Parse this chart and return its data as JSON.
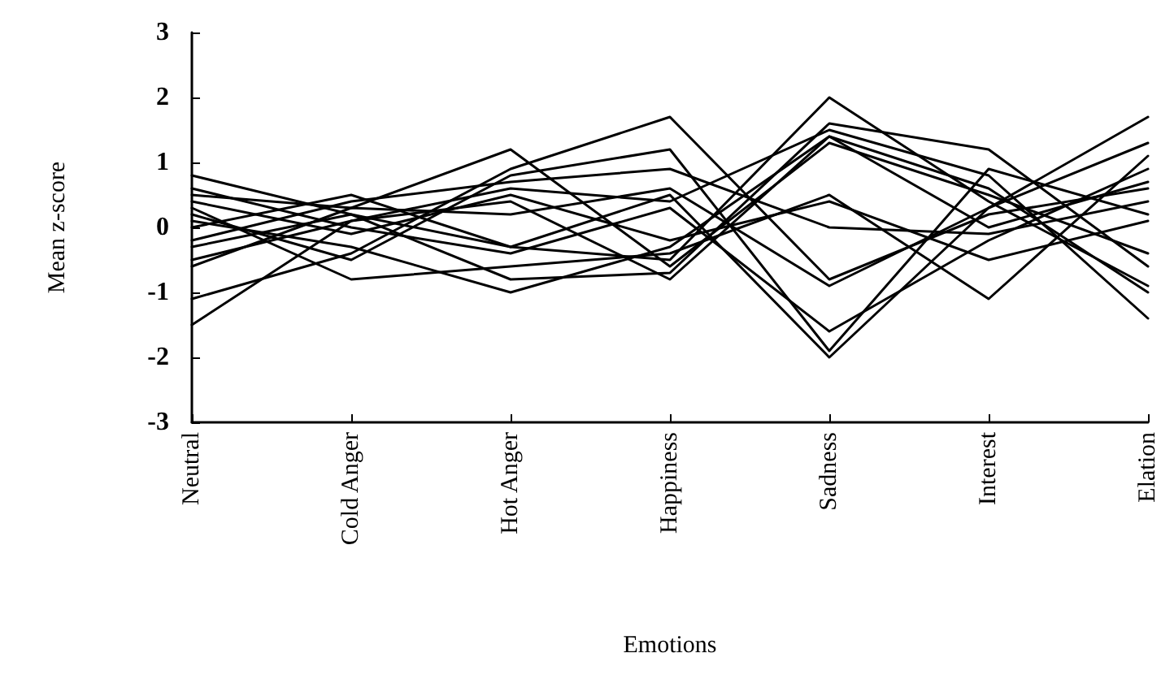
{
  "chart_data": {
    "type": "line",
    "xlabel": "Emotions",
    "ylabel": "Mean z-score",
    "categories": [
      "Neutral",
      "Cold Anger",
      "Hot Anger",
      "Happiness",
      "Sadness",
      "Interest",
      "Elation"
    ],
    "ylim": [
      -3,
      3
    ],
    "yticks": [
      -3,
      -2,
      -1,
      0,
      1,
      2,
      3
    ],
    "grid": false,
    "marker": "none",
    "line_style": "solid",
    "series": [
      {
        "color": "#000000",
        "values": [
          0.8,
          0.2,
          -0.3,
          -0.5,
          2.0,
          0.4,
          -0.9
        ]
      },
      {
        "color": "#000000",
        "values": [
          -1.5,
          0.1,
          0.6,
          0.4,
          1.5,
          0.8,
          -1.4
        ]
      },
      {
        "color": "#000000",
        "values": [
          -1.1,
          -0.4,
          0.9,
          1.7,
          -0.8,
          0.2,
          0.6
        ]
      },
      {
        "color": "#000000",
        "values": [
          0.5,
          0.3,
          1.2,
          -0.6,
          1.3,
          0.5,
          -0.4
        ]
      },
      {
        "color": "#000000",
        "values": [
          0.2,
          -0.5,
          0.8,
          1.2,
          -1.9,
          0.9,
          0.2
        ]
      },
      {
        "color": "#000000",
        "values": [
          -0.3,
          0.2,
          -0.8,
          -0.7,
          1.6,
          1.2,
          -0.6
        ]
      },
      {
        "color": "#000000",
        "values": [
          0.0,
          0.5,
          -0.3,
          0.5,
          -2.0,
          0.3,
          1.7
        ]
      },
      {
        "color": "#000000",
        "values": [
          0.3,
          -0.8,
          -0.6,
          -0.4,
          0.5,
          -1.1,
          1.1
        ]
      },
      {
        "color": "#000000",
        "values": [
          -0.5,
          0.1,
          0.4,
          -0.8,
          1.4,
          0.0,
          0.7
        ]
      },
      {
        "color": "#000000",
        "values": [
          0.6,
          0.0,
          -0.4,
          0.3,
          -1.6,
          -0.2,
          0.9
        ]
      },
      {
        "color": "#000000",
        "values": [
          -0.2,
          0.4,
          0.7,
          0.9,
          0.0,
          -0.1,
          0.4
        ]
      },
      {
        "color": "#000000",
        "values": [
          0.1,
          -0.3,
          -1.0,
          -0.3,
          1.4,
          0.6,
          -1.0
        ]
      },
      {
        "color": "#000000",
        "values": [
          -0.6,
          0.3,
          0.2,
          0.6,
          -0.9,
          0.3,
          1.3
        ]
      },
      {
        "color": "#000000",
        "values": [
          0.4,
          -0.1,
          0.5,
          -0.2,
          0.4,
          -0.5,
          0.1
        ]
      }
    ]
  }
}
